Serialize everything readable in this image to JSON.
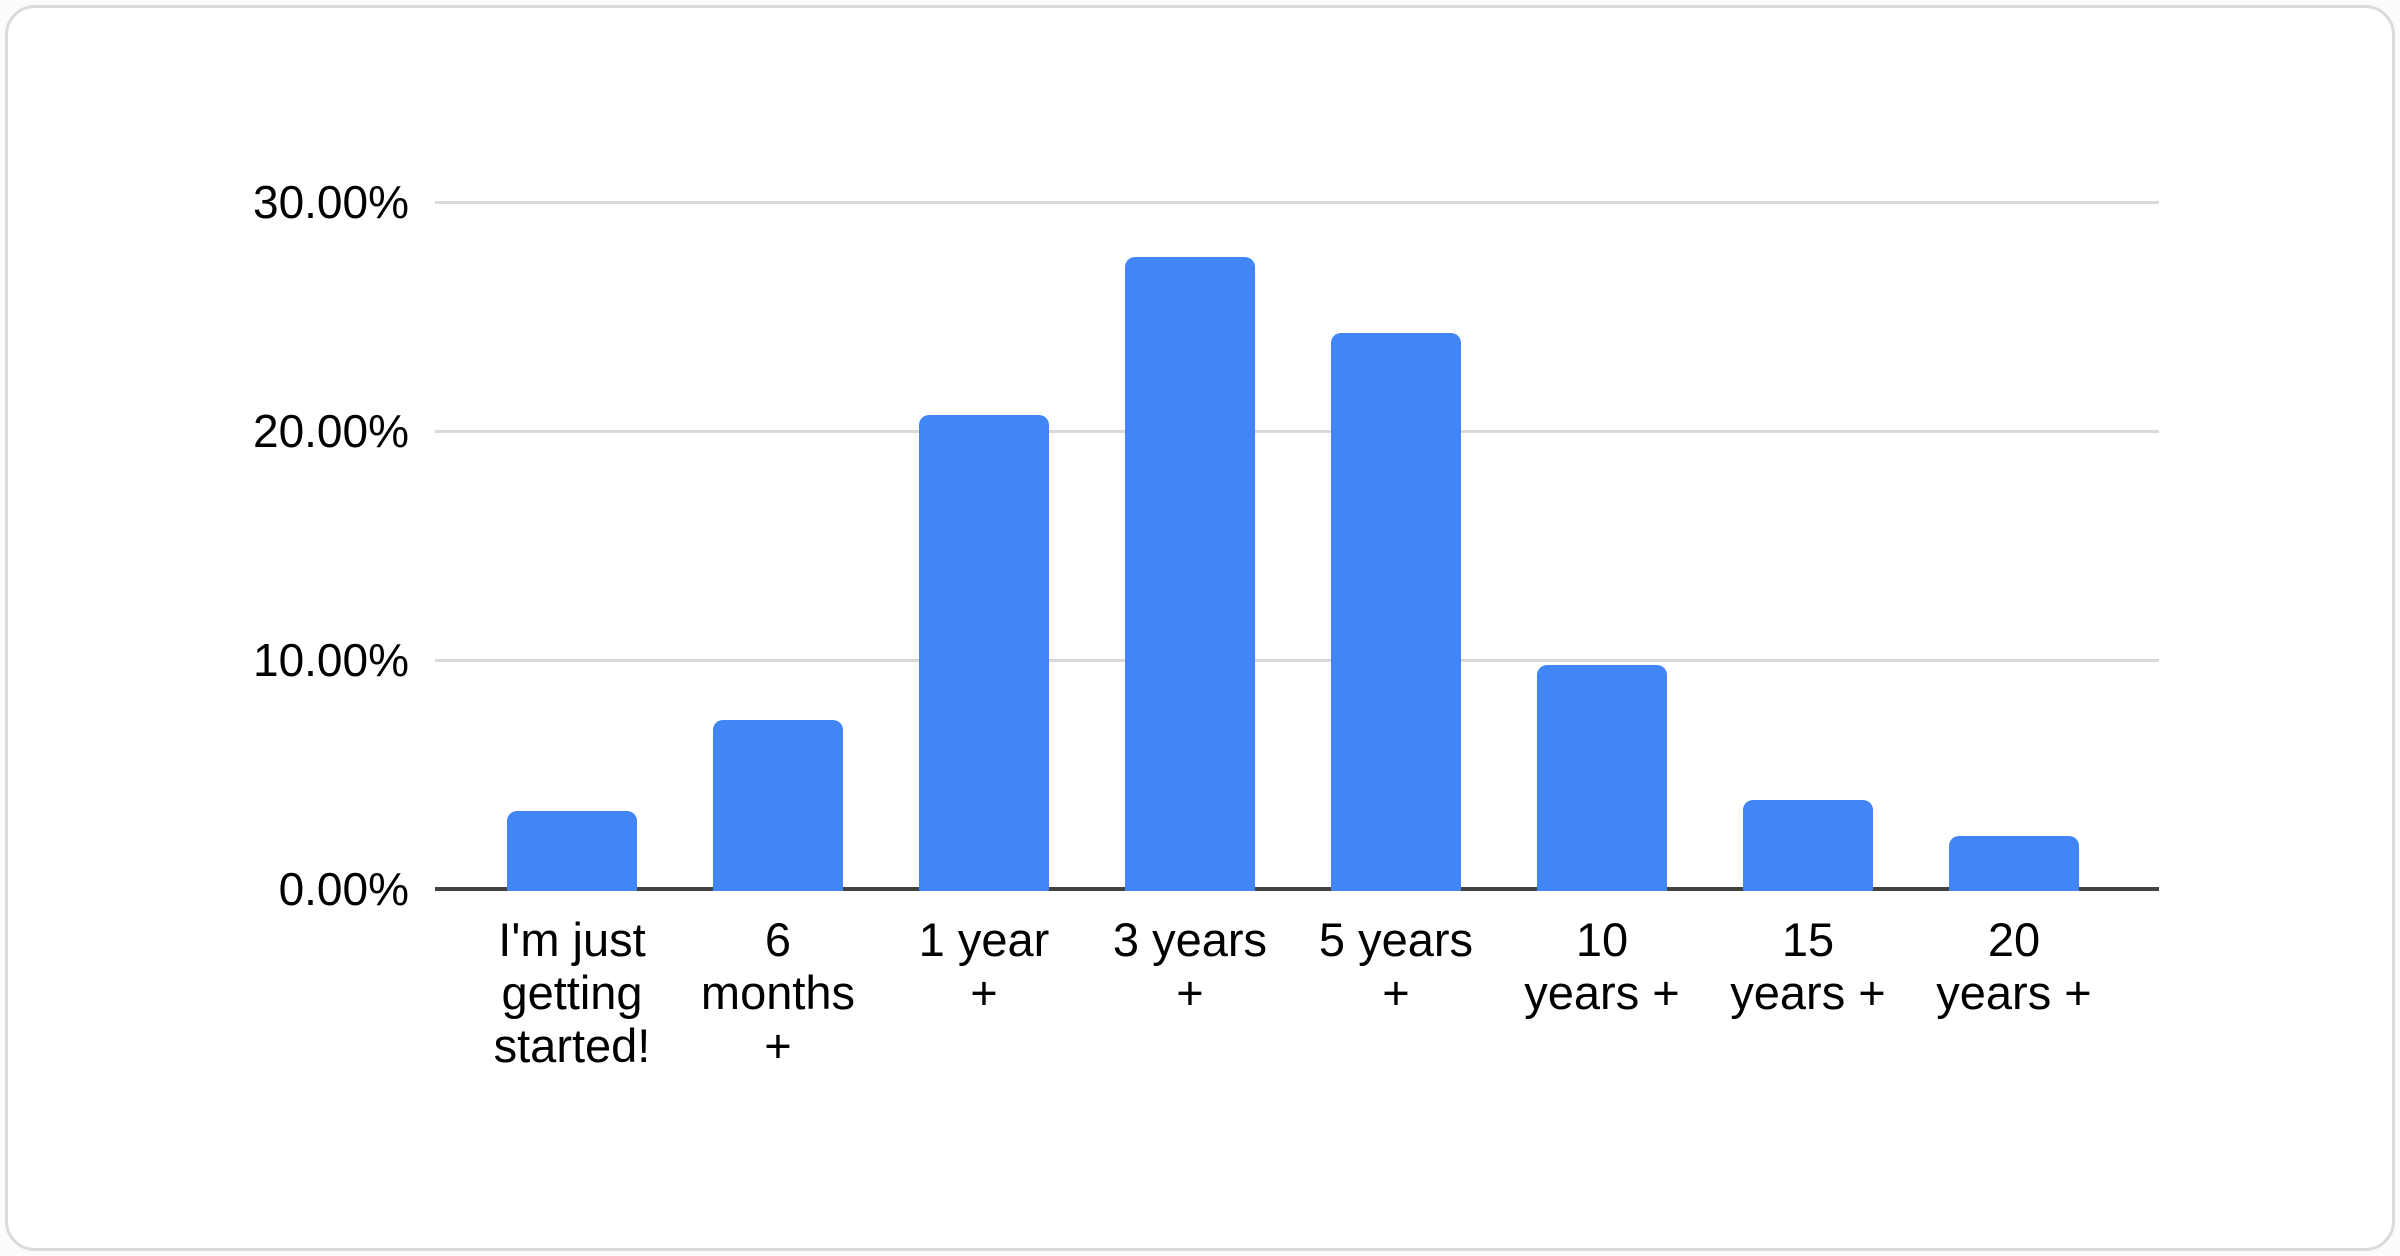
{
  "chart_data": {
    "type": "bar",
    "title": "",
    "xlabel": "",
    "ylabel": "",
    "categories": [
      "I'm just getting started!",
      "6 months +",
      "1 year +",
      "3 years +",
      "5 years +",
      "10 years +",
      "15 years +",
      "20 years +"
    ],
    "values": [
      3.4,
      7.4,
      20.7,
      27.6,
      24.3,
      9.8,
      3.9,
      2.3
    ],
    "value_unit": "%",
    "ylim": [
      0,
      30
    ],
    "yticks": [
      {
        "value": 0,
        "label": "0.00%"
      },
      {
        "value": 10,
        "label": "10.00%"
      },
      {
        "value": 20,
        "label": "20.00%"
      },
      {
        "value": 30,
        "label": "30.00%"
      }
    ],
    "grid": true,
    "legend": "none",
    "bar_color": "#4285f4"
  },
  "colors": {
    "bar": "#4285f4",
    "gridline": "#d9d9d9",
    "axis_line": "#424242",
    "label_text": "#000000",
    "card_background": "#ffffff",
    "card_border": "#d9dadd",
    "page_background": "#fbfbfc"
  }
}
